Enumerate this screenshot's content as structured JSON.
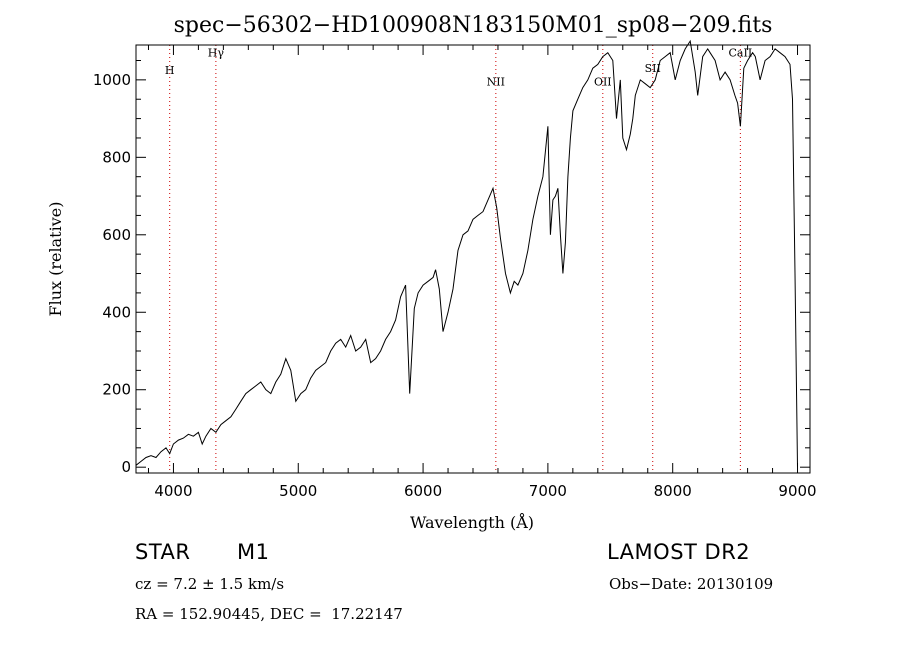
{
  "chart_data": {
    "type": "line",
    "title": "spec−56302−HD100908N183150M01_sp08−209.fits",
    "xlabel": "Wavelength (Å)",
    "ylabel": "Flux (relative)",
    "xlim": [
      3700,
      9100
    ],
    "ylim": [
      -15,
      1090
    ],
    "xticks": [
      4000,
      5000,
      6000,
      7000,
      8000,
      9000
    ],
    "yticks": [
      0,
      200,
      400,
      600,
      800,
      1000
    ],
    "grid": false,
    "line_color": "#000000",
    "marker_color": "#cc0000",
    "lines": [
      {
        "label": "H",
        "x": 3970,
        "label_y": 1015
      },
      {
        "label": "Hγ",
        "x": 4340,
        "label_y": 1060
      },
      {
        "label": "NII",
        "x": 6583,
        "label_y": 985
      },
      {
        "label": "OII",
        "x": 7440,
        "label_y": 985
      },
      {
        "label": "SII",
        "x": 7840,
        "label_y": 1020
      },
      {
        "label": "CaII",
        "x": 8542,
        "label_y": 1060
      }
    ],
    "series": [
      {
        "x": [
          3700,
          3740,
          3780,
          3820,
          3860,
          3900,
          3940,
          3970,
          4000,
          4040,
          4080,
          4120,
          4160,
          4200,
          4230,
          4260,
          4300,
          4340,
          4380,
          4420,
          4460,
          4500,
          4540,
          4580,
          4620,
          4660,
          4700,
          4740,
          4780,
          4820,
          4860,
          4900,
          4940,
          4980,
          5020,
          5060,
          5100,
          5140,
          5180,
          5220,
          5260,
          5300,
          5340,
          5380,
          5420,
          5460,
          5500,
          5540,
          5580,
          5620,
          5660,
          5700,
          5740,
          5780,
          5820,
          5860,
          5893,
          5930,
          5960,
          6000,
          6040,
          6080,
          6100,
          6130,
          6160,
          6200,
          6240,
          6280,
          6320,
          6360,
          6400,
          6440,
          6480,
          6520,
          6560,
          6590,
          6620,
          6660,
          6700,
          6730,
          6760,
          6800,
          6840,
          6880,
          6920,
          6960,
          7000,
          7020,
          7040,
          7060,
          7080,
          7100,
          7120,
          7140,
          7160,
          7180,
          7200,
          7240,
          7280,
          7320,
          7360,
          7400,
          7440,
          7480,
          7520,
          7550,
          7580,
          7600,
          7630,
          7660,
          7680,
          7700,
          7740,
          7780,
          7820,
          7860,
          7900,
          7940,
          7980,
          8020,
          8060,
          8100,
          8140,
          8180,
          8200,
          8240,
          8280,
          8300,
          8340,
          8380,
          8420,
          8460,
          8498,
          8520,
          8542,
          8570,
          8600,
          8640,
          8662,
          8700,
          8740,
          8780,
          8820,
          8860,
          8900,
          8940,
          8960,
          8980,
          9000
        ],
        "values": [
          5,
          15,
          25,
          30,
          25,
          40,
          50,
          35,
          60,
          70,
          75,
          85,
          80,
          90,
          60,
          80,
          100,
          90,
          110,
          120,
          130,
          150,
          170,
          190,
          200,
          210,
          220,
          200,
          190,
          220,
          240,
          280,
          250,
          170,
          190,
          200,
          230,
          250,
          260,
          270,
          300,
          320,
          330,
          310,
          340,
          300,
          310,
          330,
          270,
          280,
          300,
          330,
          350,
          380,
          440,
          470,
          190,
          410,
          450,
          470,
          480,
          490,
          510,
          460,
          350,
          400,
          460,
          560,
          600,
          610,
          640,
          650,
          660,
          690,
          720,
          670,
          590,
          500,
          450,
          480,
          470,
          500,
          560,
          640,
          700,
          750,
          880,
          600,
          690,
          700,
          720,
          600,
          500,
          580,
          750,
          850,
          920,
          950,
          980,
          1000,
          1030,
          1040,
          1060,
          1070,
          1050,
          900,
          1000,
          850,
          820,
          860,
          900,
          960,
          1000,
          990,
          980,
          1000,
          1050,
          1060,
          1070,
          1000,
          1050,
          1080,
          1100,
          1020,
          960,
          1060,
          1080,
          1070,
          1050,
          1000,
          1020,
          1000,
          960,
          940,
          880,
          1030,
          1050,
          1070,
          1060,
          1000,
          1050,
          1060,
          1080,
          1070,
          1060,
          1040,
          950,
          500,
          0
        ]
      }
    ]
  },
  "info": {
    "object_type": "STAR",
    "subclass": "M1",
    "survey": "LAMOST DR2",
    "cz": "cz = 7.2 ± 1.5 km/s",
    "obs_date": "Obs−Date: 20130109",
    "radec": "RA = 152.90445, DEC =  17.22147"
  }
}
